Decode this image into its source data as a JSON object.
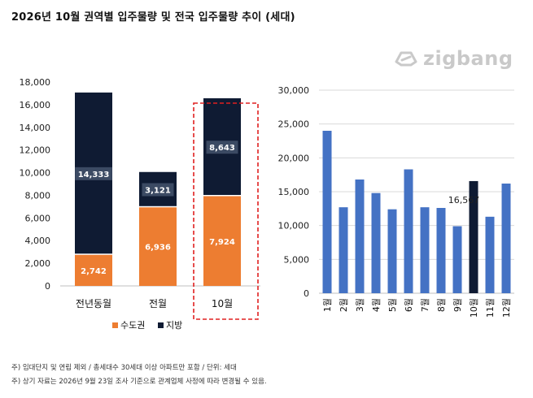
{
  "title": "2026년 10월 권역별 입주물량 및 전국 입주물량 추이 (세대)",
  "brand": {
    "name": "zigbang",
    "icon": "zigbang-logo-icon",
    "color": "#c9c9c9"
  },
  "notes": [
    "주) 임대단지 및 연립 제외 / 총세대수 30세대 이상 아파트만 포함 / 단위: 세대",
    "주) 상기 자료는 2026년 9월 23일 조사 기준으로 관계업체 사정에 따라 변경될 수 있음."
  ],
  "colors": {
    "capital": "#ed7d31",
    "region": "#0f1b33",
    "national": "#4472c4",
    "highlight": "#0f1b33",
    "box": "#e02020"
  },
  "chart_data": [
    {
      "type": "bar",
      "stacked": true,
      "categories": [
        "전년동월",
        "전월",
        "10월"
      ],
      "series": [
        {
          "name": "수도권",
          "values": [
            2742,
            6936,
            7924
          ]
        },
        {
          "name": "지방",
          "values": [
            14333,
            3121,
            8643
          ]
        }
      ],
      "ylim": [
        0,
        18000
      ],
      "yticks": [
        "0",
        "2,000",
        "4,000",
        "6,000",
        "8,000",
        "10,000",
        "12,000",
        "14,000",
        "16,000",
        "18,000"
      ],
      "data_labels": {
        "수도권": [
          "2,742",
          "6,936",
          "7,924"
        ],
        "지방": [
          "14,333",
          "3,121",
          "8,643"
        ]
      },
      "highlight_category": "10월",
      "legend": "bottom",
      "grid": false
    },
    {
      "type": "bar",
      "categories": [
        "1월",
        "2월",
        "3월",
        "4월",
        "5월",
        "6월",
        "7월",
        "8월",
        "9월",
        "10월",
        "11월",
        "12월"
      ],
      "values": [
        24000,
        12700,
        16800,
        14800,
        12400,
        18300,
        12700,
        12600,
        9900,
        16567,
        11300,
        16200
      ],
      "highlight_index": 9,
      "highlight_label": "16,567",
      "ylim": [
        0,
        30000
      ],
      "yticks": [
        "0",
        "5,000",
        "10,000",
        "15,000",
        "20,000",
        "25,000",
        "30,000"
      ],
      "grid": true
    }
  ]
}
